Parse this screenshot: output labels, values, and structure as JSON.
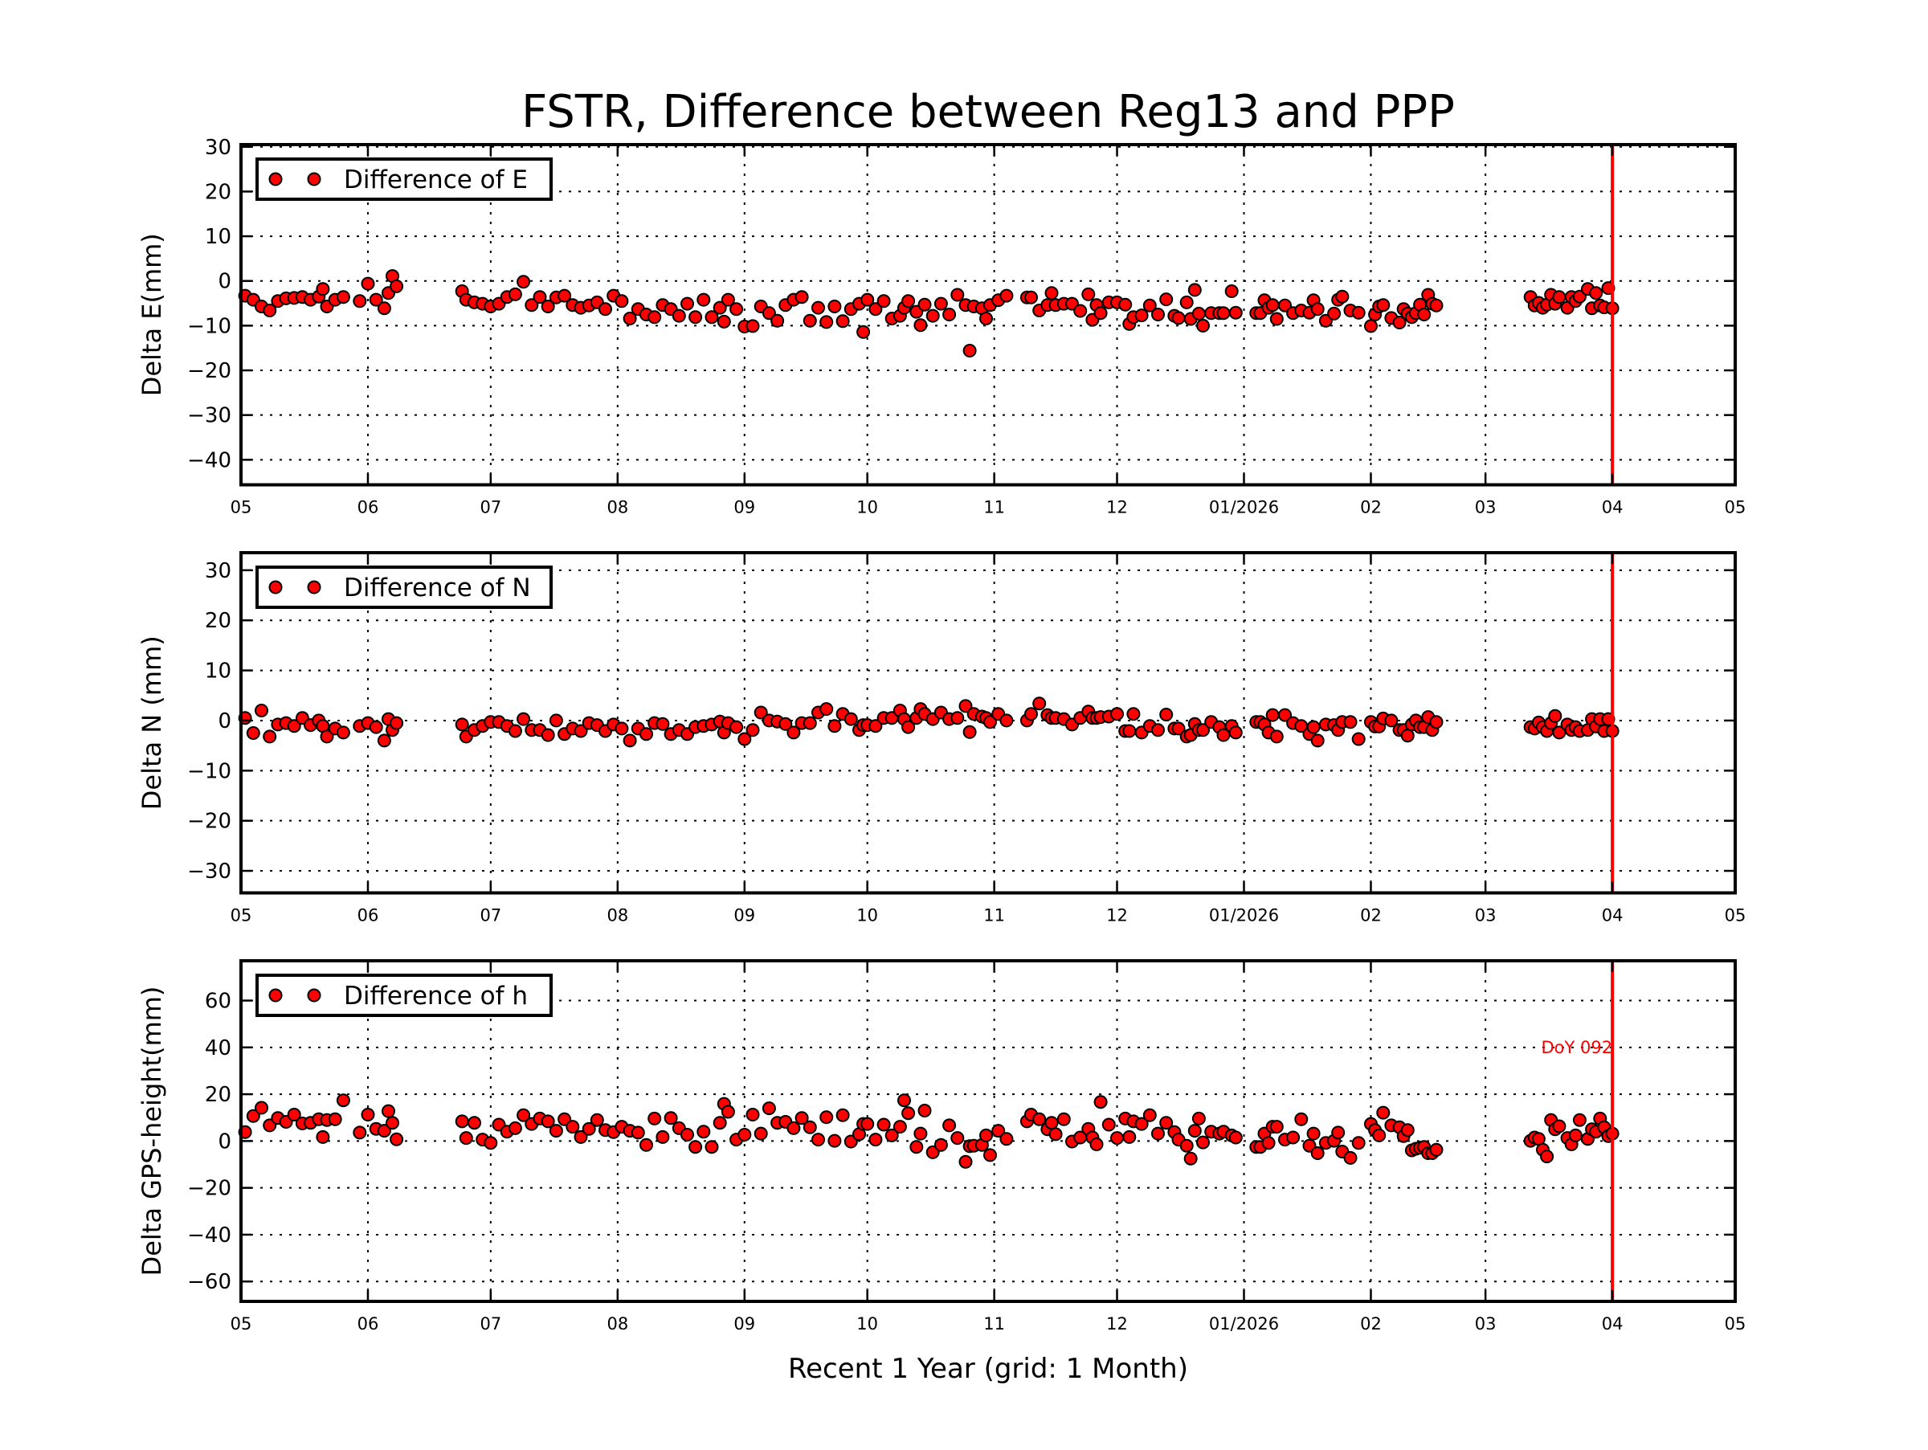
{
  "chart_data": {
    "type": "scatter",
    "title": "FSTR, Difference between Reg13 and PPP",
    "xlabel": "Recent 1 Year (grid: 1 Month)",
    "xlim": [
      "2025-05-01",
      "2026-05-01"
    ],
    "xticks": [
      {
        "date": "2025-05-01",
        "label": "05"
      },
      {
        "date": "2025-06-01",
        "label": "06"
      },
      {
        "date": "2025-07-01",
        "label": "07"
      },
      {
        "date": "2025-08-01",
        "label": "08"
      },
      {
        "date": "2025-09-01",
        "label": "09"
      },
      {
        "date": "2025-10-01",
        "label": "10"
      },
      {
        "date": "2025-11-01",
        "label": "11"
      },
      {
        "date": "2025-12-01",
        "label": "12"
      },
      {
        "date": "2026-01-01",
        "label": "01/2026"
      },
      {
        "date": "2026-02-01",
        "label": "02"
      },
      {
        "date": "2026-03-01",
        "label": "03"
      },
      {
        "date": "2026-04-01",
        "label": "04"
      },
      {
        "date": "2026-05-01",
        "label": "05"
      }
    ],
    "grid": true,
    "marker_color": "#ff0000",
    "marker_edge_color": "#000000",
    "vline": {
      "date": "2026-04-01",
      "label": "DoY 092",
      "label_value": 40,
      "label_panel": 2,
      "color": "#ff0000"
    },
    "x": [
      "2025-05-02",
      "2025-05-04",
      "2025-05-06",
      "2025-05-08",
      "2025-05-10",
      "2025-05-12",
      "2025-05-14",
      "2025-05-16",
      "2025-05-18",
      "2025-05-20",
      "2025-05-21",
      "2025-05-22",
      "2025-05-24",
      "2025-05-26",
      "2025-05-30",
      "2025-06-01",
      "2025-06-03",
      "2025-06-05",
      "2025-06-06",
      "2025-06-07",
      "2025-06-08",
      "2025-06-24",
      "2025-06-25",
      "2025-06-27",
      "2025-06-29",
      "2025-07-01",
      "2025-07-03",
      "2025-07-05",
      "2025-07-07",
      "2025-07-09",
      "2025-07-11",
      "2025-07-13",
      "2025-07-15",
      "2025-07-17",
      "2025-07-19",
      "2025-07-21",
      "2025-07-23",
      "2025-07-25",
      "2025-07-27",
      "2025-07-29",
      "2025-07-31",
      "2025-08-02",
      "2025-08-04",
      "2025-08-06",
      "2025-08-08",
      "2025-08-10",
      "2025-08-12",
      "2025-08-14",
      "2025-08-16",
      "2025-08-18",
      "2025-08-20",
      "2025-08-22",
      "2025-08-24",
      "2025-08-26",
      "2025-08-27",
      "2025-08-28",
      "2025-08-30",
      "2025-09-01",
      "2025-09-03",
      "2025-09-05",
      "2025-09-07",
      "2025-09-09",
      "2025-09-11",
      "2025-09-13",
      "2025-09-15",
      "2025-09-17",
      "2025-09-19",
      "2025-09-21",
      "2025-09-23",
      "2025-09-25",
      "2025-09-27",
      "2025-09-29",
      "2025-09-30",
      "2025-10-01",
      "2025-10-03",
      "2025-10-05",
      "2025-10-07",
      "2025-10-09",
      "2025-10-10",
      "2025-10-11",
      "2025-10-13",
      "2025-10-14",
      "2025-10-15",
      "2025-10-17",
      "2025-10-19",
      "2025-10-21",
      "2025-10-23",
      "2025-10-25",
      "2025-10-26",
      "2025-10-27",
      "2025-10-29",
      "2025-10-30",
      "2025-10-31",
      "2025-11-02",
      "2025-11-04",
      "2025-11-09",
      "2025-11-10",
      "2025-11-12",
      "2025-11-14",
      "2025-11-15",
      "2025-11-16",
      "2025-11-18",
      "2025-11-20",
      "2025-11-22",
      "2025-11-24",
      "2025-11-25",
      "2025-11-26",
      "2025-11-27",
      "2025-11-29",
      "2025-12-01",
      "2025-12-03",
      "2025-12-04",
      "2025-12-05",
      "2025-12-07",
      "2025-12-09",
      "2025-12-11",
      "2025-12-13",
      "2025-12-15",
      "2025-12-16",
      "2025-12-18",
      "2025-12-19",
      "2025-12-20",
      "2025-12-21",
      "2025-12-22",
      "2025-12-24",
      "2025-12-26",
      "2025-12-27",
      "2025-12-29",
      "2025-12-30",
      "2026-01-04",
      "2026-01-05",
      "2026-01-06",
      "2026-01-07",
      "2026-01-08",
      "2026-01-09",
      "2026-01-11",
      "2026-01-13",
      "2026-01-15",
      "2026-01-17",
      "2026-01-18",
      "2026-01-19",
      "2026-01-21",
      "2026-01-23",
      "2026-01-24",
      "2026-01-25",
      "2026-01-27",
      "2026-01-29",
      "2026-02-01",
      "2026-02-02",
      "2026-02-03",
      "2026-02-04",
      "2026-02-06",
      "2026-02-08",
      "2026-02-09",
      "2026-02-10",
      "2026-02-11",
      "2026-02-12",
      "2026-02-13",
      "2026-02-14",
      "2026-02-15",
      "2026-02-16",
      "2026-02-17",
      "2026-03-12",
      "2026-03-13",
      "2026-03-14",
      "2026-03-15",
      "2026-03-16",
      "2026-03-17",
      "2026-03-18",
      "2026-03-19",
      "2026-03-21",
      "2026-03-22",
      "2026-03-23",
      "2026-03-24",
      "2026-03-26",
      "2026-03-27",
      "2026-03-28",
      "2026-03-29",
      "2026-03-30",
      "2026-03-31",
      "2026-04-01"
    ],
    "panels": [
      {
        "ylabel": "Delta E(mm)",
        "legend": "Difference of E",
        "legend_position": "top-left",
        "ylim": [
          -45.6,
          30.5
        ],
        "yticks": [
          30,
          20,
          10,
          0,
          -10,
          -20,
          -30,
          -40
        ],
        "values": [
          -3.3,
          -4.2,
          -5.7,
          -6.6,
          -4.5,
          -3.9,
          -3.8,
          -3.6,
          -4.2,
          -3.5,
          -1.8,
          -5.7,
          -4.2,
          -3.6,
          -4.5,
          -0.6,
          -4.2,
          -6.1,
          -2.7,
          1.1,
          -1.2,
          -2.3,
          -4.2,
          -4.8,
          -5.1,
          -5.7,
          -5.1,
          -3.6,
          -3.0,
          -0.2,
          -5.4,
          -3.6,
          -5.7,
          -3.7,
          -3.3,
          -5.4,
          -6.0,
          -5.5,
          -4.8,
          -6.3,
          -3.3,
          -4.5,
          -8.4,
          -6.3,
          -7.5,
          -8.1,
          -5.4,
          -6.3,
          -7.8,
          -5.1,
          -8.1,
          -4.2,
          -8.1,
          -6.0,
          -9.1,
          -4.2,
          -6.3,
          -10.2,
          -10.1,
          -5.7,
          -7.2,
          -8.9,
          -5.4,
          -4.2,
          -3.6,
          -8.9,
          -6.0,
          -9.2,
          -5.7,
          -9.0,
          -6.3,
          -5.1,
          -11.4,
          -4.2,
          -6.3,
          -4.5,
          -8.4,
          -7.8,
          -6.0,
          -4.5,
          -6.9,
          -9.9,
          -5.3,
          -7.8,
          -5.1,
          -7.5,
          -3.1,
          -5.4,
          -15.6,
          -5.7,
          -6.1,
          -8.4,
          -5.4,
          -4.3,
          -3.3,
          -3.7,
          -3.7,
          -6.6,
          -5.4,
          -2.7,
          -5.4,
          -5.1,
          -5.1,
          -6.7,
          -3.0,
          -8.7,
          -5.4,
          -7.2,
          -4.8,
          -4.8,
          -5.3,
          -9.6,
          -8.1,
          -7.7,
          -5.5,
          -7.5,
          -4.1,
          -7.8,
          -8.3,
          -4.8,
          -8.5,
          -2.0,
          -7.3,
          -10.0,
          -7.2,
          -7.2,
          -7.2,
          -2.3,
          -7.1,
          -7.2,
          -7.2,
          -4.3,
          -6.0,
          -5.4,
          -8.5,
          -5.5,
          -7.2,
          -6.6,
          -7.1,
          -4.3,
          -6.3,
          -8.9,
          -7.3,
          -4.2,
          -3.5,
          -6.6,
          -7.1,
          -10.1,
          -7.5,
          -5.7,
          -5.4,
          -8.3,
          -9.3,
          -6.3,
          -7.3,
          -8.1,
          -7.2,
          -5.3,
          -7.5,
          -3.1,
          -5.1,
          -5.5,
          -3.6,
          -5.5,
          -4.9,
          -6.0,
          -5.3,
          -3.1,
          -5.1,
          -3.6,
          -6.0,
          -3.6,
          -4.5,
          -3.5,
          -1.8,
          -6.1,
          -2.7,
          -5.5,
          -5.9,
          -1.6,
          -6.1
        ]
      },
      {
        "ylabel": "Delta N (mm)",
        "legend": "Difference of N",
        "legend_position": "top-left",
        "ylim": [
          -34.4,
          33.5
        ],
        "yticks": [
          30,
          20,
          10,
          0,
          -10,
          -20,
          -30
        ],
        "values": [
          0.5,
          -2.5,
          2.0,
          -3.2,
          -0.8,
          -0.5,
          -1.1,
          0.5,
          -0.9,
          0.0,
          -1.1,
          -3.2,
          -1.6,
          -2.4,
          -1.1,
          -0.5,
          -1.3,
          -4.0,
          0.3,
          -1.9,
          -0.5,
          -0.8,
          -3.2,
          -1.9,
          -1.1,
          -0.3,
          -0.3,
          -1.1,
          -2.1,
          0.3,
          -1.9,
          -1.9,
          -2.9,
          0.0,
          -2.7,
          -1.6,
          -2.1,
          -0.5,
          -0.9,
          -2.1,
          -0.8,
          -1.6,
          -4.0,
          -1.6,
          -2.7,
          -0.5,
          -0.7,
          -2.7,
          -1.9,
          -2.7,
          -1.3,
          -1.1,
          -0.8,
          -0.2,
          -2.4,
          -0.5,
          -1.3,
          -3.7,
          -1.9,
          1.6,
          0.0,
          -0.2,
          -0.7,
          -2.4,
          -0.5,
          -0.5,
          1.6,
          2.3,
          -1.1,
          1.3,
          0.3,
          -1.9,
          -0.9,
          -0.9,
          -1.1,
          0.5,
          0.5,
          2.0,
          0.3,
          -1.3,
          0.5,
          2.3,
          1.3,
          0.3,
          1.6,
          0.3,
          0.5,
          2.9,
          -2.3,
          1.3,
          0.8,
          0.5,
          -0.3,
          1.3,
          0.0,
          0.0,
          1.3,
          3.4,
          1.1,
          0.5,
          0.5,
          0.3,
          -0.8,
          0.5,
          1.8,
          0.5,
          0.5,
          0.7,
          0.8,
          1.3,
          -2.1,
          -2.1,
          1.3,
          -2.4,
          -1.1,
          -1.9,
          1.2,
          -1.6,
          -1.6,
          -3.2,
          -2.9,
          -0.7,
          -1.9,
          -1.9,
          -0.3,
          -1.3,
          -2.9,
          -1.1,
          -2.4,
          -0.3,
          -0.3,
          -0.8,
          -2.4,
          1.1,
          -3.2,
          1.1,
          -0.5,
          -1.1,
          -2.7,
          -1.3,
          -4.0,
          -0.8,
          -0.9,
          -1.9,
          -0.3,
          -0.3,
          -3.7,
          -0.3,
          -1.2,
          -1.2,
          0.4,
          0.0,
          -1.9,
          -1.9,
          -3.0,
          -0.8,
          0.0,
          -1.3,
          -1.3,
          0.7,
          -1.9,
          -0.3,
          -1.3,
          -1.6,
          -0.4,
          -1.3,
          -2.1,
          -0.5,
          0.9,
          -2.4,
          -0.8,
          -1.9,
          -1.3,
          -2.1,
          -1.9,
          0.3,
          -1.2,
          0.3,
          -2.1,
          0.3,
          -2.1
        ]
      },
      {
        "ylabel": "Delta GPS-height(mm)",
        "legend": "Difference of h",
        "legend_position": "top-left",
        "ylim": [
          -68.5,
          77.0
        ],
        "yticks": [
          60,
          40,
          20,
          0,
          -20,
          -40,
          -60
        ],
        "values": [
          3.8,
          10.7,
          14.2,
          6.7,
          9.8,
          8.2,
          11.3,
          7.5,
          7.8,
          9.3,
          1.7,
          9.0,
          9.3,
          17.4,
          3.6,
          11.3,
          5.2,
          4.4,
          12.8,
          7.8,
          0.7,
          8.4,
          1.3,
          7.8,
          0.6,
          -0.8,
          7.0,
          4.0,
          5.5,
          11.0,
          7.3,
          9.6,
          8.4,
          4.4,
          9.3,
          6.1,
          1.7,
          5.2,
          9.0,
          4.7,
          3.8,
          6.1,
          4.4,
          3.6,
          -1.7,
          9.6,
          1.7,
          9.8,
          5.5,
          2.7,
          -2.5,
          4.0,
          -2.5,
          7.8,
          15.9,
          12.5,
          0.6,
          2.7,
          11.3,
          3.2,
          14.0,
          7.8,
          8.2,
          5.5,
          9.8,
          5.9,
          0.6,
          10.2,
          0.1,
          11.0,
          -0.2,
          2.9,
          7.3,
          7.3,
          0.6,
          7.0,
          2.4,
          6.1,
          17.4,
          11.9,
          -2.5,
          3.2,
          13.0,
          -4.8,
          -1.7,
          6.7,
          1.3,
          -8.9,
          -2.2,
          -2.0,
          -1.7,
          2.4,
          -6.0,
          4.4,
          0.9,
          8.4,
          11.3,
          9.3,
          5.0,
          7.8,
          2.9,
          9.3,
          -0.2,
          1.5,
          5.2,
          1.5,
          -1.4,
          16.7,
          7.0,
          1.3,
          9.6,
          1.7,
          8.4,
          7.3,
          11.0,
          3.2,
          7.8,
          3.8,
          0.6,
          -2.0,
          -7.5,
          4.4,
          9.6,
          -0.6,
          4.0,
          3.2,
          4.0,
          2.4,
          1.5,
          -2.5,
          -2.5,
          3.2,
          -0.8,
          6.1,
          6.1,
          0.6,
          1.5,
          9.3,
          -2.0,
          3.2,
          -5.2,
          -0.8,
          0.1,
          3.6,
          -4.5,
          -7.2,
          -0.8,
          7.3,
          4.7,
          2.4,
          12.1,
          6.7,
          5.9,
          2.1,
          4.7,
          -4.0,
          -3.3,
          -2.9,
          -2.5,
          -5.2,
          -5.2,
          -3.7,
          0.1,
          1.5,
          0.9,
          -3.7,
          -6.6,
          9.0,
          5.0,
          6.3,
          1.3,
          -1.4,
          2.4,
          9.0,
          0.9,
          5.0,
          4.0,
          9.6,
          5.9,
          2.1,
          3.2
        ]
      }
    ]
  }
}
